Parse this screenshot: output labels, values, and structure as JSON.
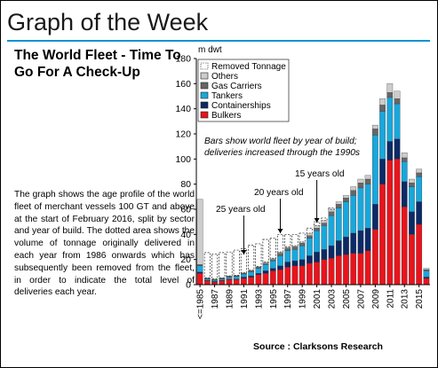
{
  "page": {
    "title": "Graph of the Week",
    "headline": "The World Fleet - Time To Go For A Check-Up",
    "body": "The graph shows the age profile of the world fleet of merchant vessels 100 GT and above at the start of February 2016, split by sector and year of build. The dotted area shows the volume of tonnage originally delivered in each year from 1986 onwards which has subsequently been removed from the fleet, in order to indicate the total level of deliveries each year.",
    "source": "Source : Clarksons Research"
  },
  "chart_data": {
    "type": "bar",
    "stacked": true,
    "ylabel": "m dwt",
    "ylim": [
      0,
      180
    ],
    "yticks": [
      0,
      20,
      40,
      60,
      80,
      100,
      120,
      140,
      160,
      180
    ],
    "grid": false,
    "legend_position": "top-left",
    "categories": [
      "<=1985",
      "1986",
      "1987",
      "1988",
      "1989",
      "1990",
      "1991",
      "1992",
      "1993",
      "1994",
      "1995",
      "1996",
      "1997",
      "1998",
      "1999",
      "2000",
      "2001",
      "2002",
      "2003",
      "2004",
      "2005",
      "2006",
      "2007",
      "2008",
      "2009",
      "2010",
      "2011",
      "2012",
      "2013",
      "2014",
      "2015",
      "2016"
    ],
    "xtick_labels": [
      "<=1985",
      "1987",
      "1989",
      "1991",
      "1993",
      "1995",
      "1997",
      "1999",
      "2001",
      "2003",
      "2005",
      "2007",
      "2009",
      "2011",
      "2013",
      "2015"
    ],
    "series": [
      {
        "name": "Bulkers",
        "color": "#e8141c",
        "values": [
          9,
          3,
          2,
          3,
          4,
          4,
          5,
          6,
          8,
          9,
          11,
          12,
          14,
          15,
          15,
          17,
          18,
          20,
          21,
          23,
          24,
          25,
          25,
          27,
          44,
          80,
          99,
          100,
          62,
          40,
          48,
          5
        ]
      },
      {
        "name": "Containerships",
        "color": "#0b2a66",
        "values": [
          1,
          0.5,
          0.5,
          0.5,
          0.5,
          0.5,
          1,
          1,
          1,
          2,
          2,
          3,
          4,
          4,
          5,
          6,
          8,
          8,
          10,
          12,
          14,
          16,
          18,
          18,
          20,
          20,
          15,
          16,
          20,
          18,
          18,
          1
        ]
      },
      {
        "name": "Tankers",
        "color": "#19a7dc",
        "values": [
          5,
          1,
          1,
          1,
          1.5,
          2,
          2.5,
          3,
          4,
          5,
          6,
          8,
          9,
          9,
          11,
          14,
          17,
          19,
          24,
          26,
          28,
          30,
          34,
          35,
          55,
          38,
          35,
          28,
          16,
          20,
          20,
          5
        ]
      },
      {
        "name": "Gas Carriers",
        "color": "#666666",
        "values": [
          1,
          0.5,
          0.5,
          0.5,
          0.5,
          0.5,
          0.5,
          1,
          1,
          1,
          1,
          2,
          2,
          2,
          2,
          2,
          2,
          2,
          3,
          3,
          3,
          4,
          4,
          4,
          5,
          5,
          4,
          4,
          3,
          3,
          3,
          1
        ]
      },
      {
        "name": "Others",
        "color": "#cccccc",
        "values": [
          52,
          0.5,
          0.5,
          0.5,
          0.5,
          0.5,
          0.5,
          0.5,
          0.5,
          1,
          1,
          1,
          1,
          1,
          1,
          2,
          2,
          2,
          2,
          2,
          2,
          3,
          3,
          3,
          3,
          5,
          7,
          6,
          4,
          3,
          3,
          1
        ]
      },
      {
        "name": "Removed Tonnage",
        "color": "#ffffff",
        "pattern": "dashed",
        "values": [
          0,
          20,
          20,
          20,
          19,
          20,
          19,
          20,
          18,
          18,
          16,
          14,
          10,
          9,
          7,
          4,
          3,
          2,
          1,
          0,
          0,
          0,
          0,
          0,
          0,
          0,
          0,
          0,
          0,
          0,
          0,
          0
        ]
      }
    ],
    "annotations": [
      {
        "text": "Bars show world fleet by year of build;",
        "text2": "deliveries increased through the 1990s"
      },
      {
        "text": "25 years old",
        "year": "1991"
      },
      {
        "text": "20 years old",
        "year": "1996"
      },
      {
        "text": "15 years old",
        "year": "2001"
      }
    ]
  }
}
